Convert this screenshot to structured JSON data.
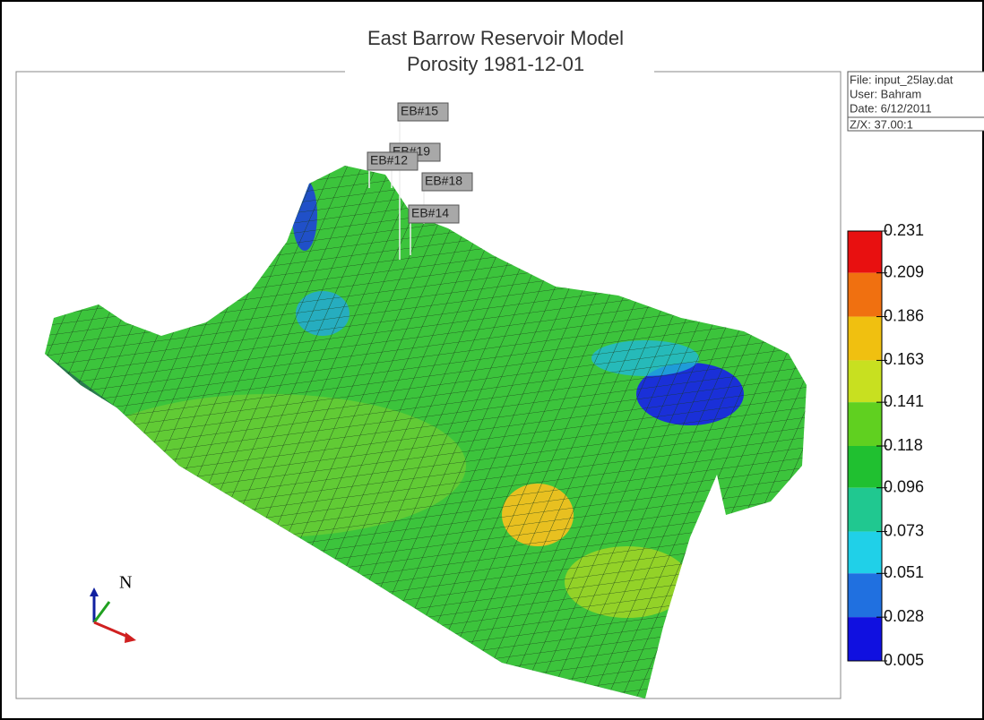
{
  "header": {
    "title": "East Barrow Reservoir Model",
    "subtitle": "Porosity 1981-12-01"
  },
  "info": {
    "file": "File: input_25lay.dat",
    "user": "User:  Bahram",
    "date": "Date: 6/12/2011",
    "scale": "Z/X: 37.00:1"
  },
  "wells": [
    "EB#15",
    "EB#19",
    "EB#12",
    "EB#18",
    "EB#14"
  ],
  "compass": "N",
  "colorbar": {
    "ticks": [
      0.231,
      0.209,
      0.186,
      0.163,
      0.141,
      0.118,
      0.096,
      0.073,
      0.051,
      0.028,
      0.005
    ],
    "colors": [
      "#e81010",
      "#f07010",
      "#f0c010",
      "#c8e020",
      "#60d020",
      "#20c030",
      "#20c890",
      "#20d0e8",
      "#2070e0",
      "#1010e0"
    ]
  }
}
